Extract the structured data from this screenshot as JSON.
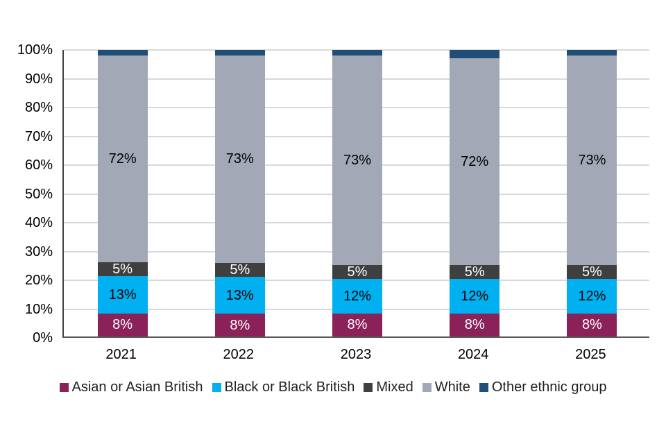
{
  "page": {
    "background": "#ffffff"
  },
  "chart_data": {
    "type": "bar",
    "stacked": true,
    "percent_stacked": true,
    "title": "",
    "xlabel": "",
    "ylabel": "",
    "categories": [
      "2021",
      "2022",
      "2023",
      "2024",
      "2025"
    ],
    "series": [
      {
        "name": "Asian or Asian British",
        "color": "#8b2159",
        "label_color": "#ffffff",
        "labeled": true,
        "values": [
          8,
          8,
          8,
          8,
          8
        ]
      },
      {
        "name": "Black or Black British",
        "color": "#00b0f0",
        "label_color": "#000000",
        "labeled": true,
        "values": [
          13,
          13,
          12,
          12,
          12
        ]
      },
      {
        "name": "Mixed",
        "color": "#3f3f3f",
        "label_color": "#ffffff",
        "labeled": true,
        "values": [
          5,
          5,
          5,
          5,
          5
        ]
      },
      {
        "name": "White",
        "color": "#a3a8b7",
        "label_color": "#000000",
        "labeled": true,
        "values": [
          72,
          73,
          73,
          72,
          73
        ]
      },
      {
        "name": "Other ethnic group",
        "color": "#1f4e79",
        "label_color": "#ffffff",
        "labeled": false,
        "values": [
          2,
          2,
          2,
          3,
          2
        ]
      }
    ],
    "value_suffix": "%",
    "y_ticks": [
      "0%",
      "10%",
      "20%",
      "30%",
      "40%",
      "50%",
      "60%",
      "70%",
      "80%",
      "90%",
      "100%"
    ],
    "ylim": [
      0,
      100
    ],
    "grid": "horizontal",
    "gridline_color": "#d9d9d9",
    "axis_line_color": "#595959",
    "legend_position": "bottom"
  }
}
